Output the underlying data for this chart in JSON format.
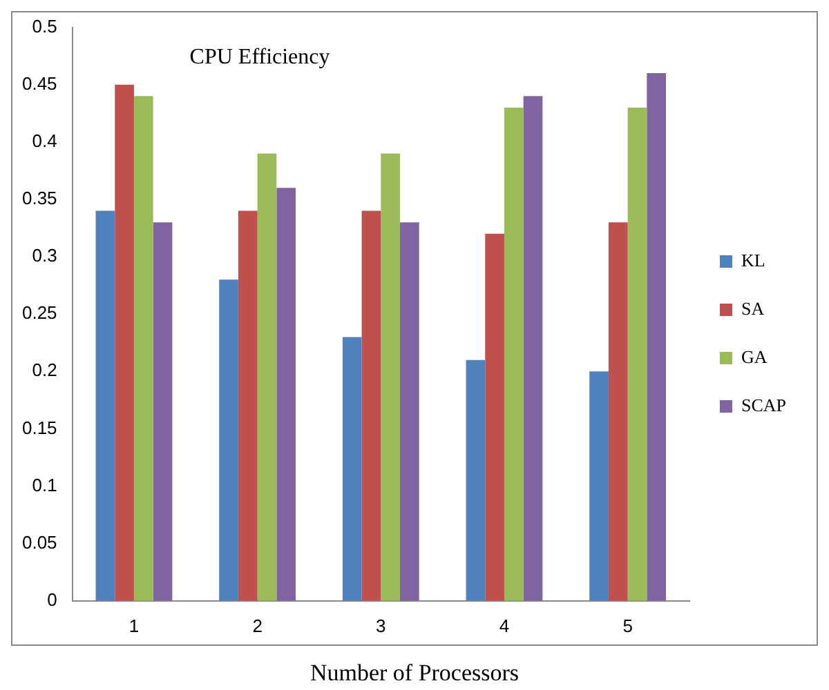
{
  "chart_data": {
    "type": "bar",
    "title": "CPU Efficiency",
    "xlabel": "Number of Processors",
    "categories": [
      "1",
      "2",
      "3",
      "4",
      "5"
    ],
    "series": [
      {
        "name": "KL",
        "color": "#4f81bd",
        "values": [
          0.34,
          0.28,
          0.23,
          0.21,
          0.2
        ]
      },
      {
        "name": "SA",
        "color": "#c0504d",
        "values": [
          0.45,
          0.34,
          0.34,
          0.32,
          0.33
        ]
      },
      {
        "name": "GA",
        "color": "#9bbb59",
        "values": [
          0.44,
          0.39,
          0.39,
          0.43,
          0.43
        ]
      },
      {
        "name": "SCAP",
        "color": "#8064a2",
        "values": [
          0.33,
          0.36,
          0.33,
          0.44,
          0.46
        ]
      }
    ],
    "ylim": [
      0,
      0.5
    ],
    "yticks": [
      0,
      0.05,
      0.1,
      0.15,
      0.2,
      0.25,
      0.3,
      0.35,
      0.4,
      0.45,
      0.5
    ],
    "grid": false,
    "legend": "right"
  }
}
